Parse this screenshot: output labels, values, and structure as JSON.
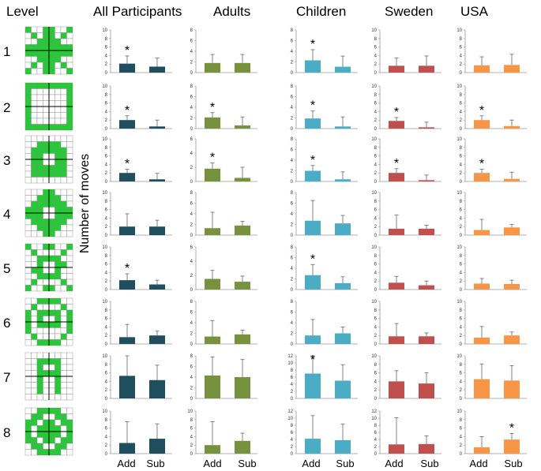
{
  "headers": {
    "level": "Level",
    "groups": [
      "All Participants",
      "Adults",
      "Children",
      "Sweden",
      "USA"
    ]
  },
  "level_numbers": [
    "1",
    "2",
    "3",
    "4",
    "5",
    "6",
    "7",
    "8"
  ],
  "y_axis_label": "Number of moves",
  "categories": [
    "Add",
    "Sub"
  ],
  "colors": {
    "All Participants": "#1f4e5f",
    "Adults": "#76923c",
    "Children": "#4bacc6",
    "Sweden": "#c0504d",
    "USA": "#f79646",
    "grid_fill": "#22cc33",
    "grid_line": "#888888"
  },
  "level_patterns": [
    [
      "10011001",
      "01011010",
      "00111100",
      "11111111",
      "11111111",
      "00111100",
      "01011010",
      "10011001"
    ],
    [
      "11111111",
      "10000001",
      "10000001",
      "10000001",
      "10000001",
      "10000001",
      "10000001",
      "11111111"
    ],
    [
      "00000000",
      "00111100",
      "01111110",
      "01100110",
      "01100110",
      "01111110",
      "01111110",
      "00000000"
    ],
    [
      "00011000",
      "00111100",
      "01111110",
      "11100111",
      "11100111",
      "01111110",
      "00111100",
      "00011000"
    ],
    [
      "10011001",
      "01000010",
      "00111100",
      "00100110",
      "01100100",
      "00111100",
      "01000010",
      "10011001"
    ],
    [
      "00111100",
      "01000010",
      "10111101",
      "10100101",
      "10111101",
      "10000001",
      "01000010",
      "00111100"
    ],
    [
      "00000000",
      "00111100",
      "00100100",
      "00111100",
      "00100100",
      "00100100",
      "00100100",
      "00000000"
    ],
    [
      "00111100",
      "01100110",
      "11011011",
      "10111101",
      "10111101",
      "11011011",
      "01100110",
      "00111100"
    ]
  ],
  "chart_data": [
    {
      "type": "bar",
      "level": 1,
      "group": "All Participants",
      "categories": [
        "Add",
        "Sub"
      ],
      "values": [
        2.1,
        1.4
      ],
      "errors": [
        1.8,
        2.0
      ],
      "ylim": [
        0,
        10
      ],
      "yticks": [
        0,
        2,
        4,
        6,
        8,
        10
      ],
      "significant": "Add"
    },
    {
      "type": "bar",
      "level": 1,
      "group": "Adults",
      "categories": [
        "Add",
        "Sub"
      ],
      "values": [
        1.8,
        1.8
      ],
      "errors": [
        1.6,
        1.6
      ],
      "ylim": [
        0,
        8
      ],
      "yticks": [
        0,
        2,
        4,
        6,
        8
      ],
      "significant": null
    },
    {
      "type": "bar",
      "level": 1,
      "group": "Children",
      "categories": [
        "Add",
        "Sub"
      ],
      "values": [
        2.3,
        1.1
      ],
      "errors": [
        2.0,
        2.0
      ],
      "ylim": [
        0,
        8
      ],
      "yticks": [
        0,
        2,
        4,
        6,
        8
      ],
      "significant": "Add"
    },
    {
      "type": "bar",
      "level": 1,
      "group": "Sweden",
      "categories": [
        "Add",
        "Sub"
      ],
      "values": [
        1.6,
        1.6
      ],
      "errors": [
        1.8,
        2.3
      ],
      "ylim": [
        0,
        10
      ],
      "yticks": [
        0,
        2,
        4,
        6,
        8,
        10
      ],
      "significant": null
    },
    {
      "type": "bar",
      "level": 1,
      "group": "USA",
      "categories": [
        "Add",
        "Sub"
      ],
      "values": [
        1.7,
        1.8
      ],
      "errors": [
        2.0,
        2.5
      ],
      "ylim": [
        0,
        10
      ],
      "yticks": [
        0,
        2,
        4,
        6,
        8,
        10
      ],
      "significant": null
    },
    {
      "type": "bar",
      "level": 2,
      "group": "All Participants",
      "categories": [
        "Add",
        "Sub"
      ],
      "values": [
        2.0,
        0.5
      ],
      "errors": [
        1.0,
        1.5
      ],
      "ylim": [
        0,
        10
      ],
      "yticks": [
        0,
        2,
        4,
        6,
        8,
        10
      ],
      "significant": "Add"
    },
    {
      "type": "bar",
      "level": 2,
      "group": "Adults",
      "categories": [
        "Add",
        "Sub"
      ],
      "values": [
        2.1,
        0.6
      ],
      "errors": [
        0.9,
        1.6
      ],
      "ylim": [
        0,
        8
      ],
      "yticks": [
        0,
        2,
        4,
        6,
        8
      ],
      "significant": "Add"
    },
    {
      "type": "bar",
      "level": 2,
      "group": "Children",
      "categories": [
        "Add",
        "Sub"
      ],
      "values": [
        1.9,
        0.4
      ],
      "errors": [
        1.4,
        1.8
      ],
      "ylim": [
        0,
        8
      ],
      "yticks": [
        0,
        2,
        4,
        6,
        8
      ],
      "significant": "Add"
    },
    {
      "type": "bar",
      "level": 2,
      "group": "Sweden",
      "categories": [
        "Add",
        "Sub"
      ],
      "values": [
        1.8,
        0.3
      ],
      "errors": [
        0.8,
        1.2
      ],
      "ylim": [
        0,
        10
      ],
      "yticks": [
        0,
        2,
        4,
        6,
        8,
        10
      ],
      "significant": "Add"
    },
    {
      "type": "bar",
      "level": 2,
      "group": "USA",
      "categories": [
        "Add",
        "Sub"
      ],
      "values": [
        2.0,
        0.6
      ],
      "errors": [
        1.0,
        1.4
      ],
      "ylim": [
        0,
        10
      ],
      "yticks": [
        0,
        2,
        4,
        6,
        8,
        10
      ],
      "significant": "Add"
    },
    {
      "type": "bar",
      "level": 3,
      "group": "All Participants",
      "categories": [
        "Add",
        "Sub"
      ],
      "values": [
        2.0,
        0.5
      ],
      "errors": [
        0.9,
        1.4
      ],
      "ylim": [
        0,
        10
      ],
      "yticks": [
        0,
        2,
        4,
        6,
        8,
        10
      ],
      "significant": "Add"
    },
    {
      "type": "bar",
      "level": 3,
      "group": "Adults",
      "categories": [
        "Add",
        "Sub"
      ],
      "values": [
        1.8,
        0.5
      ],
      "errors": [
        0.8,
        1.5
      ],
      "ylim": [
        0,
        6
      ],
      "yticks": [
        0,
        2,
        4,
        6
      ],
      "significant": "Add"
    },
    {
      "type": "bar",
      "level": 3,
      "group": "Children",
      "categories": [
        "Add",
        "Sub"
      ],
      "values": [
        2.0,
        0.4
      ],
      "errors": [
        1.0,
        1.4
      ],
      "ylim": [
        0,
        8
      ],
      "yticks": [
        0,
        2,
        4,
        6,
        8
      ],
      "significant": "Add"
    },
    {
      "type": "bar",
      "level": 3,
      "group": "Sweden",
      "categories": [
        "Add",
        "Sub"
      ],
      "values": [
        2.0,
        0.3
      ],
      "errors": [
        1.0,
        1.2
      ],
      "ylim": [
        0,
        10
      ],
      "yticks": [
        0,
        2,
        4,
        6,
        8,
        10
      ],
      "significant": "Add"
    },
    {
      "type": "bar",
      "level": 3,
      "group": "USA",
      "categories": [
        "Add",
        "Sub"
      ],
      "values": [
        2.0,
        0.6
      ],
      "errors": [
        0.9,
        1.6
      ],
      "ylim": [
        0,
        10
      ],
      "yticks": [
        0,
        2,
        4,
        6,
        8,
        10
      ],
      "significant": "Add"
    },
    {
      "type": "bar",
      "level": 4,
      "group": "All Participants",
      "categories": [
        "Add",
        "Sub"
      ],
      "values": [
        2.0,
        2.0
      ],
      "errors": [
        3.0,
        1.5
      ],
      "ylim": [
        0,
        10
      ],
      "yticks": [
        0,
        2,
        4,
        6,
        8,
        10
      ],
      "significant": null
    },
    {
      "type": "bar",
      "level": 4,
      "group": "Adults",
      "categories": [
        "Add",
        "Sub"
      ],
      "values": [
        1.3,
        1.8
      ],
      "errors": [
        3.0,
        0.8
      ],
      "ylim": [
        0,
        8
      ],
      "yticks": [
        0,
        2,
        4,
        6,
        8
      ],
      "significant": null
    },
    {
      "type": "bar",
      "level": 4,
      "group": "Children",
      "categories": [
        "Add",
        "Sub"
      ],
      "values": [
        2.7,
        2.2
      ],
      "errors": [
        3.8,
        1.5
      ],
      "ylim": [
        0,
        8
      ],
      "yticks": [
        0,
        2,
        4,
        6,
        8
      ],
      "significant": null
    },
    {
      "type": "bar",
      "level": 4,
      "group": "Sweden",
      "categories": [
        "Add",
        "Sub"
      ],
      "values": [
        1.5,
        1.5
      ],
      "errors": [
        3.2,
        0.8
      ],
      "ylim": [
        0,
        10
      ],
      "yticks": [
        0,
        2,
        4,
        6,
        8,
        10
      ],
      "significant": null
    },
    {
      "type": "bar",
      "level": 4,
      "group": "USA",
      "categories": [
        "Add",
        "Sub"
      ],
      "values": [
        1.2,
        1.8
      ],
      "errors": [
        2.5,
        0.7
      ],
      "ylim": [
        0,
        10
      ],
      "yticks": [
        0,
        2,
        4,
        6,
        8,
        10
      ],
      "significant": null
    },
    {
      "type": "bar",
      "level": 5,
      "group": "All Participants",
      "categories": [
        "Add",
        "Sub"
      ],
      "values": [
        2.2,
        1.2
      ],
      "errors": [
        1.5,
        1.0
      ],
      "ylim": [
        0,
        10
      ],
      "yticks": [
        0,
        2,
        4,
        6,
        8,
        10
      ],
      "significant": "Add"
    },
    {
      "type": "bar",
      "level": 5,
      "group": "Adults",
      "categories": [
        "Add",
        "Sub"
      ],
      "values": [
        1.5,
        1.1
      ],
      "errors": [
        1.2,
        0.8
      ],
      "ylim": [
        0,
        6
      ],
      "yticks": [
        0,
        2,
        4,
        6
      ],
      "significant": null
    },
    {
      "type": "bar",
      "level": 5,
      "group": "Children",
      "categories": [
        "Add",
        "Sub"
      ],
      "values": [
        2.7,
        1.2
      ],
      "errors": [
        2.0,
        1.2
      ],
      "ylim": [
        0,
        8
      ],
      "yticks": [
        0,
        2,
        4,
        6,
        8
      ],
      "significant": "Add"
    },
    {
      "type": "bar",
      "level": 5,
      "group": "Sweden",
      "categories": [
        "Add",
        "Sub"
      ],
      "values": [
        1.6,
        1.0
      ],
      "errors": [
        1.5,
        1.0
      ],
      "ylim": [
        0,
        10
      ],
      "yticks": [
        0,
        2,
        4,
        6,
        8,
        10
      ],
      "significant": null
    },
    {
      "type": "bar",
      "level": 5,
      "group": "USA",
      "categories": [
        "Add",
        "Sub"
      ],
      "values": [
        1.4,
        1.3
      ],
      "errors": [
        1.2,
        0.9
      ],
      "ylim": [
        0,
        10
      ],
      "yticks": [
        0,
        2,
        4,
        6,
        8,
        10
      ],
      "significant": null
    },
    {
      "type": "bar",
      "level": 6,
      "group": "All Participants",
      "categories": [
        "Add",
        "Sub"
      ],
      "values": [
        1.6,
        2.0
      ],
      "errors": [
        3.0,
        1.0
      ],
      "ylim": [
        0,
        10
      ],
      "yticks": [
        0,
        2,
        4,
        6,
        8,
        10
      ],
      "significant": null
    },
    {
      "type": "bar",
      "level": 6,
      "group": "Adults",
      "categories": [
        "Add",
        "Sub"
      ],
      "values": [
        1.4,
        1.8
      ],
      "errors": [
        3.0,
        0.8
      ],
      "ylim": [
        0,
        8
      ],
      "yticks": [
        0,
        2,
        4,
        6,
        8
      ],
      "significant": null
    },
    {
      "type": "bar",
      "level": 6,
      "group": "Children",
      "categories": [
        "Add",
        "Sub"
      ],
      "values": [
        1.6,
        2.0
      ],
      "errors": [
        3.0,
        1.2
      ],
      "ylim": [
        0,
        8
      ],
      "yticks": [
        0,
        2,
        4,
        6,
        8
      ],
      "significant": null
    },
    {
      "type": "bar",
      "level": 6,
      "group": "Sweden",
      "categories": [
        "Add",
        "Sub"
      ],
      "values": [
        1.8,
        1.8
      ],
      "errors": [
        3.0,
        0.8
      ],
      "ylim": [
        0,
        10
      ],
      "yticks": [
        0,
        2,
        4,
        6,
        8,
        10
      ],
      "significant": null
    },
    {
      "type": "bar",
      "level": 6,
      "group": "USA",
      "categories": [
        "Add",
        "Sub"
      ],
      "values": [
        1.5,
        2.0
      ],
      "errors": [
        2.6,
        0.8
      ],
      "ylim": [
        0,
        10
      ],
      "yticks": [
        0,
        2,
        4,
        6,
        8,
        10
      ],
      "significant": null
    },
    {
      "type": "bar",
      "level": 7,
      "group": "All Participants",
      "categories": [
        "Add",
        "Sub"
      ],
      "values": [
        5.3,
        4.3
      ],
      "errors": [
        5.0,
        3.5
      ],
      "ylim": [
        0,
        10
      ],
      "yticks": [
        0,
        2,
        4,
        6,
        8,
        10
      ],
      "significant": null
    },
    {
      "type": "bar",
      "level": 7,
      "group": "Adults",
      "categories": [
        "Add",
        "Sub"
      ],
      "values": [
        4.3,
        4.0
      ],
      "errors": [
        3.5,
        3.3
      ],
      "ylim": [
        0,
        8
      ],
      "yticks": [
        0,
        2,
        4,
        6,
        8
      ],
      "significant": null
    },
    {
      "type": "bar",
      "level": 7,
      "group": "Children",
      "categories": [
        "Add",
        "Sub"
      ],
      "values": [
        7.0,
        5.0
      ],
      "errors": [
        5.5,
        4.5
      ],
      "ylim": [
        0,
        12
      ],
      "yticks": [
        0,
        2,
        4,
        6,
        8,
        10,
        12
      ],
      "significant": "Add"
    },
    {
      "type": "bar",
      "level": 7,
      "group": "Sweden",
      "categories": [
        "Add",
        "Sub"
      ],
      "values": [
        4.0,
        3.5
      ],
      "errors": [
        2.5,
        2.5
      ],
      "ylim": [
        0,
        10
      ],
      "yticks": [
        0,
        2,
        4,
        6,
        8,
        10
      ],
      "significant": null
    },
    {
      "type": "bar",
      "level": 7,
      "group": "USA",
      "categories": [
        "Add",
        "Sub"
      ],
      "values": [
        4.5,
        4.2
      ],
      "errors": [
        3.6,
        3.5
      ],
      "ylim": [
        0,
        10
      ],
      "yticks": [
        0,
        2,
        4,
        6,
        8,
        10
      ],
      "significant": null
    },
    {
      "type": "bar",
      "level": 8,
      "group": "All Participants",
      "categories": [
        "Add",
        "Sub"
      ],
      "values": [
        2.5,
        3.5
      ],
      "errors": [
        5.0,
        3.5
      ],
      "ylim": [
        0,
        10
      ],
      "yticks": [
        0,
        2,
        4,
        6,
        8,
        10
      ],
      "significant": null
    },
    {
      "type": "bar",
      "level": 8,
      "group": "Adults",
      "categories": [
        "Add",
        "Sub"
      ],
      "values": [
        2.0,
        3.0
      ],
      "errors": [
        5.5,
        1.8
      ],
      "ylim": [
        0,
        10
      ],
      "yticks": [
        0,
        2,
        4,
        6,
        8,
        10
      ],
      "significant": null
    },
    {
      "type": "bar",
      "level": 8,
      "group": "Children",
      "categories": [
        "Add",
        "Sub"
      ],
      "values": [
        4.2,
        3.8
      ],
      "errors": [
        6.5,
        4.5
      ],
      "ylim": [
        0,
        12
      ],
      "yticks": [
        0,
        2,
        4,
        6,
        8,
        10,
        12
      ],
      "significant": null
    },
    {
      "type": "bar",
      "level": 8,
      "group": "Sweden",
      "categories": [
        "Add",
        "Sub"
      ],
      "values": [
        2.6,
        2.7
      ],
      "errors": [
        7.5,
        2.3
      ],
      "ylim": [
        0,
        12
      ],
      "yticks": [
        0,
        2,
        4,
        6,
        8,
        10,
        12
      ],
      "significant": null
    },
    {
      "type": "bar",
      "level": 8,
      "group": "USA",
      "categories": [
        "Add",
        "Sub"
      ],
      "values": [
        1.5,
        3.3
      ],
      "errors": [
        2.5,
        1.4
      ],
      "ylim": [
        0,
        10
      ],
      "yticks": [
        0,
        2,
        4,
        6,
        8,
        10
      ],
      "significant": "Sub"
    }
  ]
}
